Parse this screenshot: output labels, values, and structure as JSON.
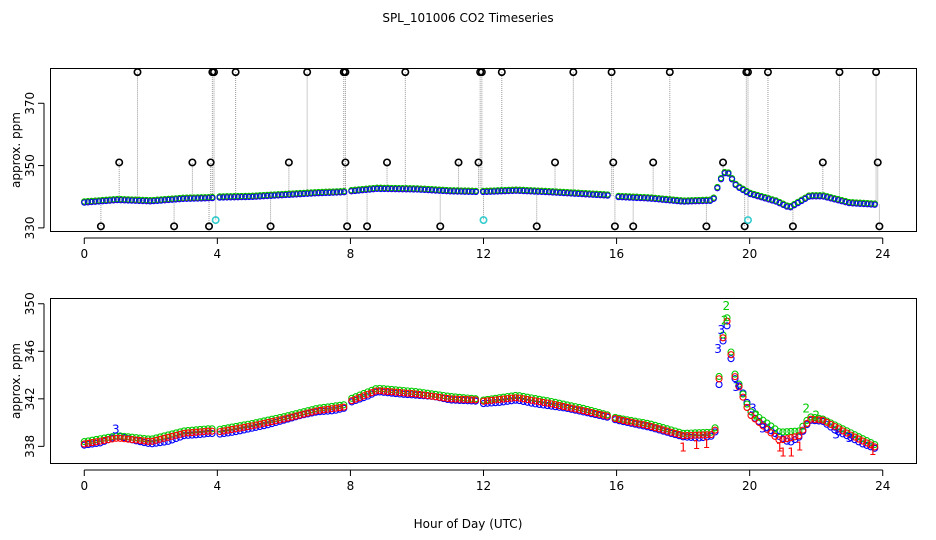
{
  "title": "SPL_101006  CO2 Timeseries",
  "xlabel": "Hour of Day (UTC)",
  "colors": {
    "black": "#000000",
    "red": "#ff0000",
    "green": "#00cc00",
    "blue": "#0000ff",
    "cyan": "#33cccc",
    "drop": "#999999"
  },
  "chart_data": [
    {
      "type": "scatter",
      "panel": "top",
      "ylabel": "approx. ppm",
      "xlim": [
        -1,
        25
      ],
      "ylim": [
        329,
        381
      ],
      "xticks": [
        0,
        4,
        8,
        12,
        16,
        20,
        24
      ],
      "yticks": [
        330,
        350,
        370
      ],
      "series_names": [
        "black",
        "red",
        "green",
        "blue"
      ],
      "baseline": [
        [
          0,
          338.2
        ],
        [
          1,
          339.0
        ],
        [
          2,
          338.6
        ],
        [
          3,
          339.4
        ],
        [
          3.8,
          339.6
        ],
        [
          4,
          339.8
        ],
        [
          5,
          340.0
        ],
        [
          6,
          340.6
        ],
        [
          7,
          341.2
        ],
        [
          7.8,
          341.5
        ],
        [
          8,
          341.8
        ],
        [
          8.8,
          342.6
        ],
        [
          10,
          342.4
        ],
        [
          11,
          341.8
        ],
        [
          11.8,
          341.6
        ],
        [
          12,
          341.6
        ],
        [
          13,
          342.0
        ],
        [
          14,
          341.5
        ],
        [
          15,
          340.9
        ],
        [
          15.8,
          340.4
        ],
        [
          16,
          340.0
        ],
        [
          17,
          339.5
        ],
        [
          18,
          338.5
        ],
        [
          18.9,
          338.8
        ],
        [
          19.1,
          345.0
        ],
        [
          19.3,
          348.5
        ],
        [
          19.6,
          343.5
        ],
        [
          20,
          341.0
        ],
        [
          20.8,
          338.5
        ],
        [
          21.2,
          336.5
        ],
        [
          21.8,
          340.2
        ],
        [
          22.2,
          340.2
        ],
        [
          23,
          338.0
        ],
        [
          23.8,
          337.5
        ]
      ],
      "spikes_high": [
        1.6,
        3.85,
        3.9,
        4.55,
        6.7,
        7.8,
        7.85,
        9.65,
        11.9,
        11.95,
        12.55,
        14.7,
        15.85,
        17.6,
        19.9,
        19.95,
        20.55,
        22.7,
        23.8
      ],
      "spikes_mid": [
        1.05,
        3.25,
        3.8,
        6.15,
        7.85,
        9.1,
        11.25,
        11.85,
        14.15,
        15.9,
        17.1,
        19.2,
        22.2,
        23.85
      ],
      "spikes_low": [
        0.5,
        2.7,
        3.75,
        5.6,
        7.9,
        8.5,
        10.7,
        13.6,
        15.95,
        16.5,
        18.7,
        19.85,
        21.3,
        23.9
      ],
      "spikes_cyan": [
        3.95,
        12.0,
        19.95
      ],
      "spike_values": {
        "high": 380,
        "mid": 351,
        "low": 330.5,
        "cyan": 332.5
      }
    },
    {
      "type": "scatter",
      "panel": "bottom",
      "ylabel": "approx. ppm",
      "xlim": [
        -1,
        25
      ],
      "ylim": [
        336.6,
        350.4
      ],
      "xticks": [
        0,
        4,
        8,
        12,
        16,
        20,
        24
      ],
      "yticks": [
        338,
        342,
        346,
        350
      ],
      "series_names": [
        "1",
        "2",
        "3"
      ],
      "series": [
        {
          "name": "blue",
          "points": [
            [
              0,
              338.1
            ],
            [
              0.5,
              338.3
            ],
            [
              1.0,
              338.9
            ],
            [
              1.5,
              338.5
            ],
            [
              2.0,
              338.2
            ],
            [
              2.5,
              338.4
            ],
            [
              3.0,
              338.9
            ],
            [
              3.5,
              339.0
            ],
            [
              3.8,
              339.1
            ],
            [
              4.0,
              339.0
            ],
            [
              4.5,
              339.2
            ],
            [
              5.0,
              339.5
            ],
            [
              5.5,
              339.8
            ],
            [
              6.0,
              340.2
            ],
            [
              6.5,
              340.6
            ],
            [
              7.0,
              340.9
            ],
            [
              7.5,
              341.0
            ],
            [
              7.8,
              341.2
            ],
            [
              8.0,
              341.7
            ],
            [
              8.5,
              342.2
            ],
            [
              8.8,
              342.6
            ],
            [
              9.5,
              342.4
            ],
            [
              10.5,
              342.2
            ],
            [
              11.0,
              341.9
            ],
            [
              11.8,
              341.8
            ],
            [
              12.0,
              341.6
            ],
            [
              12.5,
              341.7
            ],
            [
              13.0,
              341.9
            ],
            [
              13.5,
              341.6
            ],
            [
              14.5,
              341.2
            ],
            [
              15.0,
              340.9
            ],
            [
              15.8,
              340.4
            ],
            [
              16.0,
              340.2
            ],
            [
              16.5,
              339.9
            ],
            [
              17.0,
              339.6
            ],
            [
              17.5,
              339.2
            ],
            [
              18.0,
              338.8
            ],
            [
              18.5,
              338.7
            ],
            [
              18.95,
              338.9
            ],
            [
              19.05,
              342.0
            ],
            [
              19.15,
              346.0
            ],
            [
              19.3,
              348.6
            ],
            [
              19.5,
              344.0
            ],
            [
              19.8,
              342.5
            ],
            [
              20.1,
              340.5
            ],
            [
              20.5,
              339.6
            ],
            [
              20.9,
              338.8
            ],
            [
              21.2,
              338.3
            ],
            [
              21.5,
              338.8
            ],
            [
              21.8,
              340.2
            ],
            [
              22.2,
              340.1
            ],
            [
              22.6,
              339.3
            ],
            [
              23.0,
              338.8
            ],
            [
              23.4,
              338.2
            ],
            [
              23.8,
              337.8
            ]
          ]
        },
        {
          "name": "green",
          "points": [
            [
              0,
              338.4
            ],
            [
              1.0,
              338.9
            ],
            [
              2.0,
              338.6
            ],
            [
              3.0,
              339.3
            ],
            [
              3.8,
              339.5
            ],
            [
              4.0,
              339.4
            ],
            [
              5.0,
              339.9
            ],
            [
              6.0,
              340.5
            ],
            [
              7.0,
              341.2
            ],
            [
              7.8,
              341.5
            ],
            [
              8.0,
              342.0
            ],
            [
              8.8,
              342.9
            ],
            [
              10.0,
              342.6
            ],
            [
              11.0,
              342.2
            ],
            [
              11.8,
              342.0
            ],
            [
              12.0,
              341.9
            ],
            [
              13.0,
              342.3
            ],
            [
              14.0,
              341.8
            ],
            [
              15.0,
              341.2
            ],
            [
              15.8,
              340.6
            ],
            [
              16.0,
              340.4
            ],
            [
              17.0,
              339.9
            ],
            [
              18.0,
              339.1
            ],
            [
              18.95,
              339.2
            ],
            [
              19.15,
              346.4
            ],
            [
              19.3,
              349.3
            ],
            [
              19.5,
              344.5
            ],
            [
              20.0,
              341.0
            ],
            [
              20.9,
              339.2
            ],
            [
              21.5,
              339.3
            ],
            [
              21.8,
              340.5
            ],
            [
              22.2,
              340.3
            ],
            [
              23.0,
              339.2
            ],
            [
              23.8,
              338.1
            ]
          ]
        },
        {
          "name": "red",
          "points": [
            [
              0,
              338.2
            ],
            [
              1.0,
              338.7
            ],
            [
              2.0,
              338.4
            ],
            [
              3.0,
              339.1
            ],
            [
              3.8,
              339.3
            ],
            [
              4.0,
              339.2
            ],
            [
              5.0,
              339.7
            ],
            [
              6.0,
              340.3
            ],
            [
              7.0,
              341.0
            ],
            [
              7.8,
              341.3
            ],
            [
              8.0,
              341.8
            ],
            [
              8.8,
              342.7
            ],
            [
              10.0,
              342.4
            ],
            [
              11.0,
              342.0
            ],
            [
              11.8,
              341.9
            ],
            [
              12.0,
              341.8
            ],
            [
              13.0,
              342.1
            ],
            [
              14.0,
              341.6
            ],
            [
              15.0,
              341.0
            ],
            [
              15.8,
              340.5
            ],
            [
              16.0,
              340.3
            ],
            [
              17.0,
              339.7
            ],
            [
              18.0,
              338.9
            ],
            [
              18.95,
              339.0
            ],
            [
              19.15,
              346.2
            ],
            [
              19.3,
              349.0
            ],
            [
              19.5,
              344.3
            ],
            [
              20.0,
              340.7
            ],
            [
              20.9,
              338.5
            ],
            [
              21.5,
              338.9
            ],
            [
              21.8,
              340.3
            ],
            [
              22.2,
              340.2
            ],
            [
              23.0,
              339.0
            ],
            [
              23.8,
              337.9
            ]
          ]
        }
      ],
      "labels": [
        {
          "text": "3",
          "x": 0.95,
          "y": 339.4,
          "color": "blue"
        },
        {
          "text": "2",
          "x": 19.3,
          "y": 349.8,
          "color": "green"
        },
        {
          "text": "2",
          "x": 19.25,
          "y": 348.6,
          "color": "green"
        },
        {
          "text": "3",
          "x": 19.15,
          "y": 347.8,
          "color": "blue"
        },
        {
          "text": "3",
          "x": 19.05,
          "y": 346.2,
          "color": "blue"
        },
        {
          "text": "3",
          "x": 19.6,
          "y": 343.0,
          "color": "blue"
        },
        {
          "text": "3",
          "x": 20.1,
          "y": 341.2,
          "color": "blue"
        },
        {
          "text": "2",
          "x": 20.2,
          "y": 340.6,
          "color": "green"
        },
        {
          "text": "3",
          "x": 20.4,
          "y": 339.5,
          "color": "blue"
        },
        {
          "text": "2",
          "x": 21.7,
          "y": 341.2,
          "color": "green"
        },
        {
          "text": "2",
          "x": 22.0,
          "y": 340.6,
          "color": "green"
        },
        {
          "text": "3",
          "x": 22.6,
          "y": 339.0,
          "color": "blue"
        },
        {
          "text": "3",
          "x": 23.0,
          "y": 338.7,
          "color": "blue"
        },
        {
          "text": "1",
          "x": 18.0,
          "y": 337.9,
          "color": "red"
        },
        {
          "text": "1",
          "x": 18.4,
          "y": 338.1,
          "color": "red"
        },
        {
          "text": "1",
          "x": 18.7,
          "y": 338.2,
          "color": "red"
        },
        {
          "text": "1",
          "x": 20.9,
          "y": 337.9,
          "color": "red"
        },
        {
          "text": "1",
          "x": 21.0,
          "y": 337.5,
          "color": "red"
        },
        {
          "text": "1",
          "x": 21.25,
          "y": 337.5,
          "color": "red"
        },
        {
          "text": "1",
          "x": 21.5,
          "y": 338.0,
          "color": "red"
        },
        {
          "text": "1",
          "x": 23.7,
          "y": 337.6,
          "color": "red"
        }
      ]
    }
  ]
}
